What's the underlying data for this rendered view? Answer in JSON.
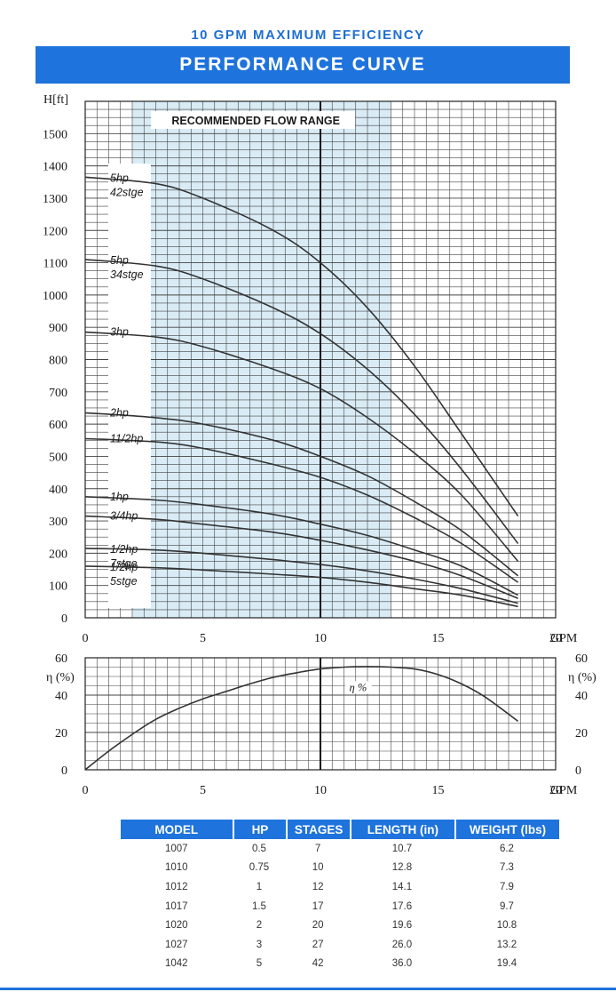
{
  "header": {
    "subtitle": "10 GPM MAXIMUM EFFICIENCY",
    "title": "PERFORMANCE CURVE"
  },
  "colors": {
    "brand_blue": "#1e73dc",
    "recommended_band": "#d9ecf6",
    "curve": "#333333",
    "grid": "#444444"
  },
  "chart_data": [
    {
      "type": "line",
      "ylabel": "H[ft]",
      "xlabel": "GPM",
      "xlim": [
        0,
        20
      ],
      "ylim": [
        0,
        1600
      ],
      "x_ticks": [
        "0",
        "5",
        "10",
        "15",
        "20"
      ],
      "y_ticks": [
        "0",
        "100",
        "200",
        "300",
        "400",
        "500",
        "600",
        "700",
        "800",
        "900",
        "1000",
        "1100",
        "1200",
        "1300",
        "1400",
        "1500"
      ],
      "grid": true,
      "recommended_flow_range": {
        "label": "RECOMMENDED FLOW RANGE",
        "x_range": [
          2,
          13
        ]
      },
      "reference_line_x": 10,
      "series": [
        {
          "name": "5hp 42stge",
          "label_lines": [
            "5hp",
            "42stge"
          ],
          "x": [
            0,
            3,
            5,
            8,
            10,
            12,
            14,
            16,
            18.4
          ],
          "values": [
            1365,
            1345,
            1300,
            1200,
            1100,
            960,
            780,
            570,
            315
          ]
        },
        {
          "name": "5hp 34stge",
          "label_lines": [
            "5hp",
            "34stge"
          ],
          "x": [
            0,
            3,
            5,
            8,
            10,
            12,
            14,
            16,
            18.4
          ],
          "values": [
            1110,
            1090,
            1050,
            960,
            880,
            770,
            630,
            460,
            230
          ]
        },
        {
          "name": "3hp",
          "label_lines": [
            "3hp"
          ],
          "x": [
            0,
            3,
            5,
            8,
            10,
            12,
            14,
            16,
            18.4
          ],
          "values": [
            885,
            870,
            840,
            770,
            710,
            620,
            510,
            380,
            175
          ]
        },
        {
          "name": "2hp",
          "label_lines": [
            "2hp"
          ],
          "x": [
            0,
            3,
            5,
            8,
            10,
            12,
            14,
            16,
            18.4
          ],
          "values": [
            635,
            620,
            600,
            550,
            500,
            440,
            360,
            270,
            130
          ]
        },
        {
          "name": "11/2hp",
          "label_lines": [
            "11/2hp"
          ],
          "x": [
            0,
            3,
            5,
            8,
            10,
            12,
            14,
            16,
            18.4
          ],
          "values": [
            555,
            545,
            525,
            475,
            435,
            380,
            310,
            230,
            110
          ]
        },
        {
          "name": "1hp",
          "label_lines": [
            "1hp"
          ],
          "x": [
            0,
            3,
            5,
            8,
            10,
            12,
            14,
            16,
            18.4
          ],
          "values": [
            375,
            365,
            350,
            320,
            290,
            255,
            210,
            160,
            70
          ]
        },
        {
          "name": "3/4hp",
          "label_lines": [
            "3/4hp"
          ],
          "x": [
            0,
            3,
            5,
            8,
            10,
            12,
            14,
            16,
            18.4
          ],
          "values": [
            315,
            305,
            290,
            265,
            240,
            210,
            175,
            130,
            60
          ]
        },
        {
          "name": "1/2hp 7stge",
          "label_lines": [
            "1/2hp",
            "7stge"
          ],
          "x": [
            0,
            3,
            5,
            8,
            10,
            12,
            14,
            16,
            18.4
          ],
          "values": [
            215,
            210,
            200,
            180,
            165,
            145,
            120,
            90,
            45
          ]
        },
        {
          "name": "1/2hp 5stge",
          "label_lines": [
            "1/2hp",
            "5stge"
          ],
          "x": [
            0,
            3,
            5,
            8,
            10,
            12,
            14,
            16,
            18.4
          ],
          "values": [
            160,
            155,
            148,
            135,
            125,
            110,
            90,
            70,
            35
          ]
        }
      ]
    },
    {
      "type": "line",
      "ylabel": "η (%)",
      "xlabel": "GPM",
      "xlim": [
        0,
        20
      ],
      "ylim": [
        0,
        60
      ],
      "x_ticks": [
        "0",
        "5",
        "10",
        "15",
        "20"
      ],
      "y_ticks": [
        "0",
        "20",
        "40",
        "60"
      ],
      "grid": true,
      "reference_line_x": 10,
      "series": [
        {
          "name": "η %",
          "x": [
            0,
            1,
            2,
            3,
            4,
            5,
            6,
            7,
            8,
            9,
            10,
            11,
            12,
            13,
            14,
            15,
            16,
            17,
            18.4
          ],
          "values": [
            0,
            10,
            19,
            27,
            33,
            38,
            42,
            46,
            49.5,
            52,
            54,
            55,
            55.3,
            55,
            54,
            51,
            46,
            39,
            26
          ]
        }
      ]
    }
  ],
  "table": {
    "headers": [
      "MODEL",
      "HP",
      "STAGES",
      "LENGTH (in)",
      "WEIGHT (lbs)"
    ],
    "rows": [
      [
        "1007",
        "0.5",
        "7",
        "10.7",
        "6.2"
      ],
      [
        "1010",
        "0.75",
        "10",
        "12.8",
        "7.3"
      ],
      [
        "1012",
        "1",
        "12",
        "14.1",
        "7.9"
      ],
      [
        "1017",
        "1.5",
        "17",
        "17.6",
        "9.7"
      ],
      [
        "1020",
        "2",
        "20",
        "19.6",
        "10.8"
      ],
      [
        "1027",
        "3",
        "27",
        "26.0",
        "13.2"
      ],
      [
        "1042",
        "5",
        "42",
        "36.0",
        "19.4"
      ]
    ]
  }
}
